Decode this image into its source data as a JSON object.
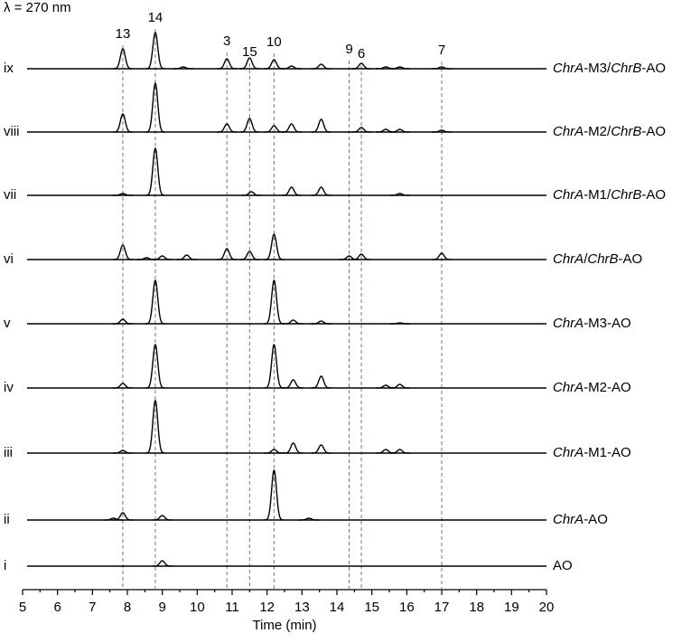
{
  "chart_data": {
    "type": "chromatogram",
    "title": "λ = 270 nm",
    "xlabel": "Time (min)",
    "xlim": [
      5,
      20
    ],
    "xticks": [
      5,
      6,
      7,
      8,
      9,
      10,
      11,
      12,
      13,
      14,
      15,
      16,
      17,
      18,
      19,
      20
    ],
    "color": "#000000",
    "markers": [
      {
        "label": "13",
        "x": 7.87
      },
      {
        "label": "14",
        "x": 8.8
      },
      {
        "label": "3",
        "x": 10.85
      },
      {
        "label": "15",
        "x": 11.5
      },
      {
        "label": "10",
        "x": 12.2
      },
      {
        "label": "9",
        "x": 14.35
      },
      {
        "label": "6",
        "x": 14.7
      },
      {
        "label": "7",
        "x": 17.0
      }
    ],
    "series": [
      {
        "label": "ix",
        "name": "ChrA-M3/ChrB-AO",
        "x": [
          7.87,
          8.8,
          9.6,
          10.85,
          11.5,
          12.2,
          12.7,
          13.55,
          14.7,
          15.4,
          15.8,
          17.0
        ],
        "values": [
          22,
          40,
          2,
          11,
          12,
          10,
          3,
          5,
          6,
          2,
          2,
          2
        ]
      },
      {
        "label": "viii",
        "name": "ChrA-M2/ChrB-AO",
        "x": [
          7.87,
          8.8,
          10.85,
          11.5,
          12.2,
          12.7,
          13.55,
          14.7,
          15.4,
          15.8,
          17.0
        ],
        "values": [
          20,
          54,
          9,
          15,
          7,
          9,
          14,
          5,
          3,
          3,
          2
        ]
      },
      {
        "label": "vii",
        "name": "ChrA-M1/ChrB-AO",
        "x": [
          7.87,
          8.8,
          11.55,
          12.7,
          13.55,
          15.8
        ],
        "values": [
          2,
          52,
          4,
          9,
          9,
          2
        ]
      },
      {
        "label": "vi",
        "name": "ChrA/ChrB-AO",
        "x": [
          7.87,
          8.55,
          9.0,
          9.7,
          10.85,
          11.5,
          12.2,
          14.35,
          14.7,
          17.0
        ],
        "values": [
          16,
          2,
          4,
          5,
          12,
          9,
          28,
          4,
          6,
          7
        ]
      },
      {
        "label": "v",
        "name": "ChrA-M3-AO",
        "x": [
          7.87,
          8.8,
          12.2,
          12.75,
          13.55,
          15.8
        ],
        "values": [
          5,
          48,
          48,
          4,
          3,
          1
        ]
      },
      {
        "label": "iv",
        "name": "ChrA-M2-AO",
        "x": [
          7.87,
          8.8,
          12.2,
          12.75,
          13.55,
          15.4,
          15.8
        ],
        "values": [
          5,
          48,
          48,
          9,
          13,
          3,
          4
        ]
      },
      {
        "label": "iii",
        "name": "ChrA-M1-AO",
        "x": [
          7.87,
          8.8,
          12.2,
          12.75,
          13.55,
          15.4,
          15.8
        ],
        "values": [
          3,
          58,
          4,
          11,
          9,
          4,
          4
        ]
      },
      {
        "label": "ii",
        "name": "ChrA-AO",
        "x": [
          7.6,
          7.87,
          9.0,
          12.2,
          13.2
        ],
        "values": [
          2,
          8,
          5,
          55,
          2
        ]
      },
      {
        "label": "i",
        "name": "AO",
        "x": [
          9.0
        ],
        "values": [
          6
        ]
      }
    ]
  }
}
